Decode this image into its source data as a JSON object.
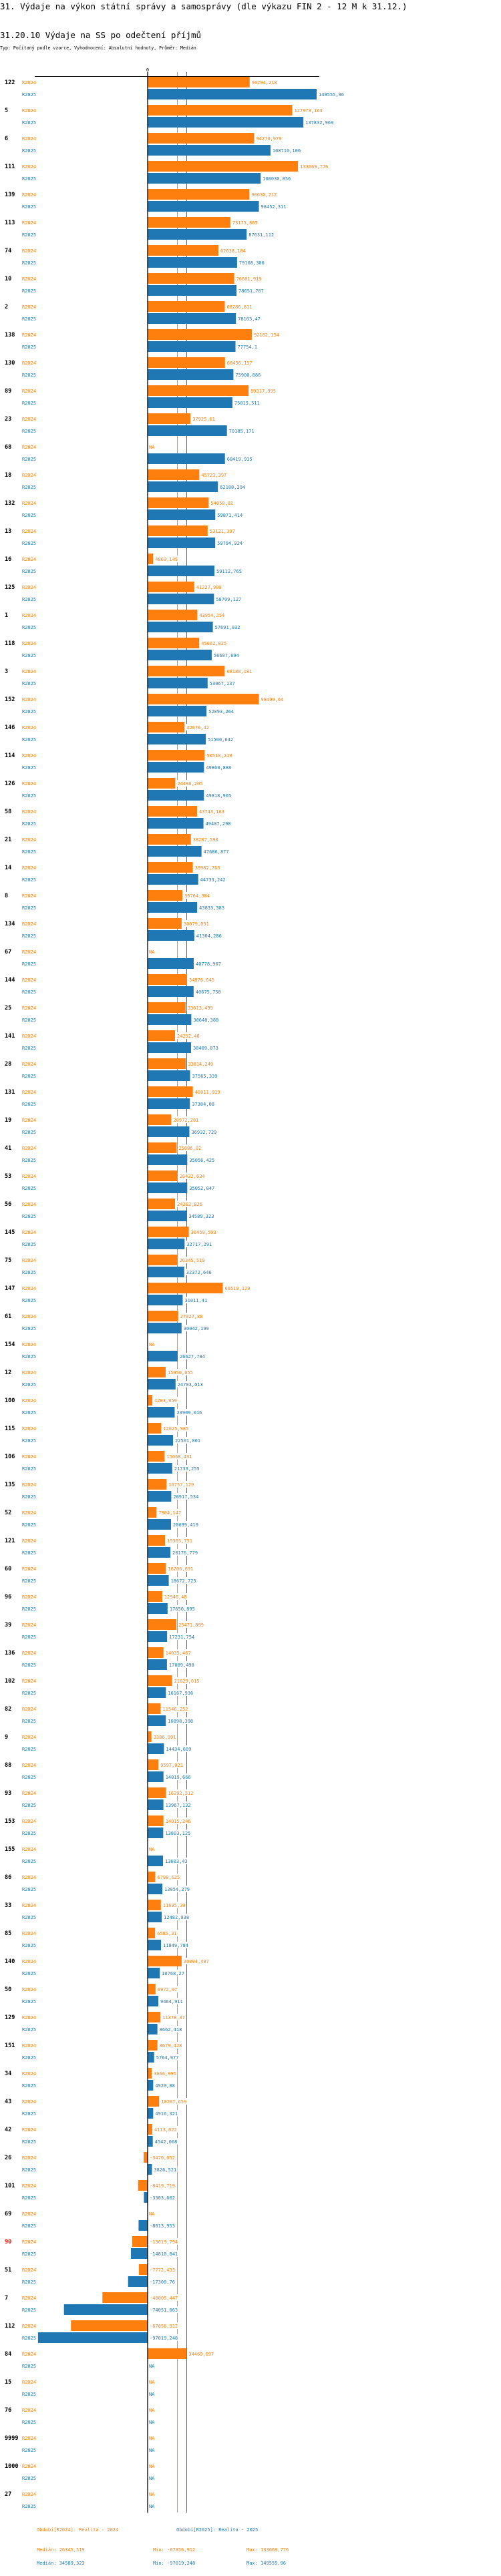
{
  "header": {
    "title": "31. Výdaje na výkon státní správy a samosprávy (dle výkazu FIN 2 - 12 M k 31.12.)",
    "subtitle": "31.20.10 Výdaje na SS po odečtení příjmů",
    "typ": "Typ: Počítaný podle vzorce, Vyhodnocení: Absolutní hodnoty, Průměr: Medián"
  },
  "colors": {
    "r2024": "#ff7f0e",
    "r2025": "#1f77b4",
    "highlight": "#ff0000",
    "axis": "#000000"
  },
  "chart_data": {
    "type": "bar",
    "orientation": "horizontal",
    "axis_zero_label": "0",
    "xlim": [
      -130000,
      155000
    ],
    "na_label": "NA",
    "highlighted_category": "90",
    "categories": [
      "122",
      "5",
      "6",
      "111",
      "139",
      "113",
      "74",
      "10",
      "2",
      "138",
      "130",
      "89",
      "23",
      "68",
      "18",
      "132",
      "13",
      "16",
      "125",
      "1",
      "118",
      "3",
      "152",
      "146",
      "114",
      "126",
      "58",
      "21",
      "14",
      "8",
      "134",
      "67",
      "144",
      "25",
      "141",
      "28",
      "131",
      "19",
      "41",
      "53",
      "56",
      "145",
      "75",
      "147",
      "61",
      "154",
      "12",
      "100",
      "115",
      "106",
      "135",
      "52",
      "121",
      "60",
      "96",
      "39",
      "136",
      "102",
      "82",
      "9",
      "88",
      "93",
      "153",
      "155",
      "86",
      "33",
      "85",
      "140",
      "50",
      "129",
      "151",
      "34",
      "43",
      "42",
      "26",
      "101",
      "69",
      "90",
      "51",
      "7",
      "112",
      "84",
      "15",
      "76",
      "9999",
      "1000",
      "27"
    ],
    "series": [
      {
        "name": "R2024",
        "values": [
          90294.218,
          127973.163,
          94270.979,
          133069.776,
          90030.212,
          73175.865,
          62638.184,
          76601.919,
          68286.811,
          92182.154,
          68456.157,
          89317.995,
          37925.61,
          null,
          45723.397,
          54050.82,
          53121.397,
          4869.149,
          41227.909,
          43954.254,
          45662.025,
          68188.181,
          98499.64,
          32676.42,
          50510.249,
          24498.205,
          43743.163,
          38287.598,
          39982.763,
          30764.384,
          30079.051,
          null,
          34876.645,
          33613.499,
          24252.48,
          33814.249,
          40011.919,
          20972.281,
          25686.02,
          26432.634,
          24262.826,
          36459.503,
          26345.519,
          66519.129,
          27027.88,
          null,
          15950.055,
          4203.959,
          12025.985,
          15068.431,
          16757.129,
          7904.147,
          15365.751,
          16206.691,
          12946.48,
          25471.899,
          14035.467,
          21629.615,
          11546.252,
          3386.991,
          9597.021,
          16292.512,
          14015.246,
          null,
          6798.625,
          11695.39,
          6585.31,
          30094.497,
          6972.97,
          11378.37,
          8679.428,
          3666.995,
          10207.659,
          4113.022,
          -3470.052,
          -8419.719,
          null,
          -13619.794,
          -7772.433,
          -40005.447,
          -67856.912,
          34469.697,
          null,
          null,
          null,
          null,
          null
        ]
      },
      {
        "name": "R2025",
        "values": [
          149555.96,
          137832.969,
          108710.106,
          100030.856,
          98452.311,
          87631.112,
          79168.306,
          78651.707,
          78103.47,
          77754.1,
          75900.886,
          75015.511,
          70185.171,
          68419.915,
          62188.294,
          59871.414,
          59794.924,
          59112.765,
          58709.127,
          57691.032,
          56697.694,
          53067.137,
          52093.264,
          51500.642,
          49860.888,
          49818.905,
          49407.298,
          47686.877,
          44733.242,
          43833.383,
          41304.286,
          40778.907,
          40675.758,
          38640.388,
          38409.073,
          37565.339,
          37384.08,
          36932.729,
          35056.425,
          35052.047,
          34589.323,
          32717.291,
          32372.646,
          31011.41,
          30042.199,
          26627.784,
          24703.013,
          23909.016,
          22501.001,
          21733.255,
          20917.534,
          20699.419,
          20176.779,
          18672.723,
          17650.895,
          17231.754,
          17089.498,
          16167.936,
          16098.398,
          14434.669,
          14019.666,
          13967.132,
          13803.125,
          13603.43,
          13054.279,
          12482.938,
          11849.784,
          10768.27,
          9464.911,
          8662.418,
          5764.977,
          4920.08,
          4916.321,
          4542.068,
          3826.521,
          -3303.602,
          -8013.953,
          -14810.841,
          -17300.76,
          -74051.063,
          -97019.248,
          null,
          null,
          null,
          null,
          null,
          null
        ]
      }
    ],
    "medians": {
      "R2024": 26345.519,
      "R2025": 34589.323
    }
  },
  "legend": {
    "r2024": "Období[R2024]: Realita - 2024",
    "r2025": "Období[R2025]: Realita - 2025"
  },
  "stats": {
    "r2024": {
      "median": "Medián: 26345,519",
      "min": "Min: -67856,912",
      "max": "Max: 133069,776"
    },
    "r2025": {
      "median": "Medián: 34589,323",
      "min": "Min: -97019,248",
      "max": "Max: 149555,96"
    }
  }
}
